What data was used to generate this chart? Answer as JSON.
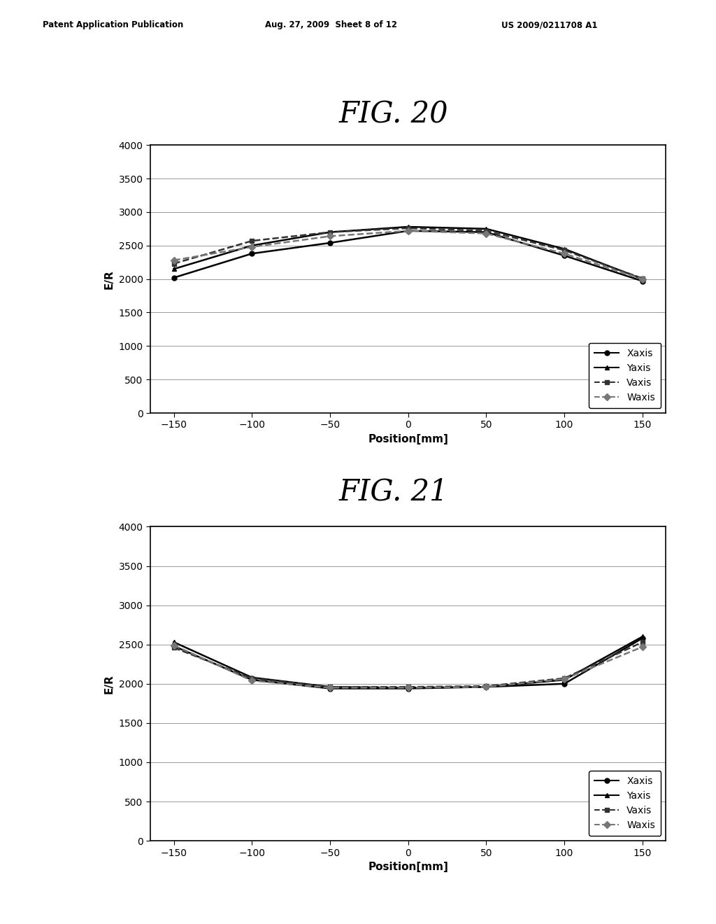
{
  "header_left": "Patent Application Publication",
  "header_mid": "Aug. 27, 2009  Sheet 8 of 12",
  "header_right": "US 2009/0211708 A1",
  "fig20_title": "FIG. 20",
  "fig21_title": "FIG. 21",
  "xlabel": "Position[mm]",
  "ylabel": "E/R",
  "x_positions": [
    -150,
    -100,
    -50,
    0,
    50,
    100,
    150
  ],
  "xlim": [
    -165,
    165
  ],
  "yticks": [
    0,
    500,
    1000,
    1500,
    2000,
    2500,
    3000,
    3500,
    4000
  ],
  "xticks": [
    -150,
    -100,
    -50,
    0,
    50,
    100,
    150
  ],
  "fig20": {
    "Xaxis": [
      2020,
      2380,
      2540,
      2720,
      2700,
      2350,
      1970
    ],
    "Yaxis": [
      2150,
      2500,
      2700,
      2780,
      2750,
      2450,
      2000
    ],
    "Vaxis": [
      2230,
      2570,
      2700,
      2760,
      2720,
      2430,
      2010
    ],
    "Waxis": [
      2280,
      2480,
      2640,
      2720,
      2680,
      2380,
      2000
    ]
  },
  "fig21": {
    "Xaxis": [
      2480,
      2050,
      1940,
      1940,
      1960,
      2000,
      2580
    ],
    "Yaxis": [
      2530,
      2080,
      1960,
      1950,
      1960,
      2050,
      2600
    ],
    "Vaxis": [
      2460,
      2070,
      1960,
      1960,
      1970,
      2070,
      2530
    ],
    "Waxis": [
      2490,
      2040,
      1950,
      1950,
      1960,
      2060,
      2470
    ]
  },
  "line_styles": {
    "Xaxis": {
      "color": "#000000",
      "linestyle": "-",
      "marker": "o",
      "linewidth": 1.8
    },
    "Yaxis": {
      "color": "#000000",
      "linestyle": "-",
      "marker": "^",
      "linewidth": 1.8
    },
    "Vaxis": {
      "color": "#333333",
      "linestyle": "--",
      "marker": "s",
      "linewidth": 1.8
    },
    "Waxis": {
      "color": "#777777",
      "linestyle": "--",
      "marker": "D",
      "linewidth": 1.8
    }
  },
  "background_color": "#ffffff"
}
